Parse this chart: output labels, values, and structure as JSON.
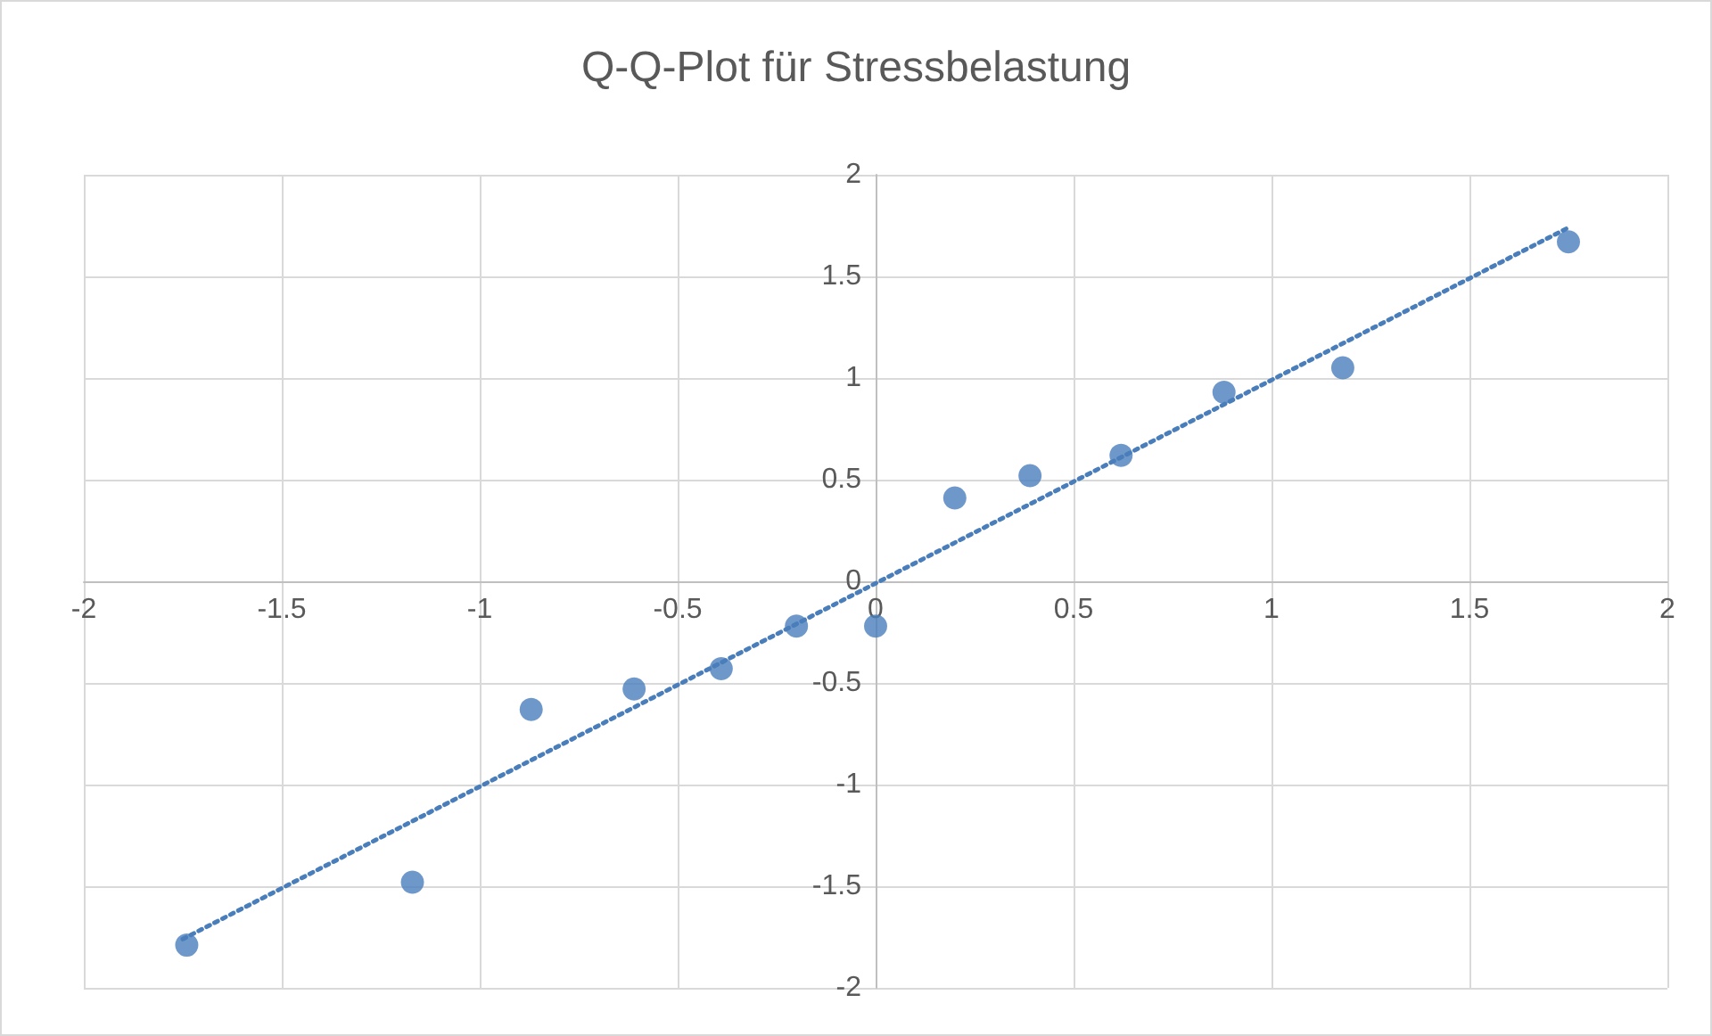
{
  "chart_data": {
    "type": "scatter",
    "title": "Q-Q-Plot für Stressbelastung",
    "x": [
      -1.74,
      -1.17,
      -0.87,
      -0.61,
      -0.39,
      -0.2,
      0,
      0.2,
      0.39,
      0.62,
      0.88,
      1.18,
      1.75
    ],
    "series": [
      {
        "color": "#4a7ebb",
        "marker": "circle",
        "values": [
          -1.79,
          -1.48,
          -0.63,
          -0.53,
          -0.43,
          -0.22,
          -0.22,
          0.41,
          0.52,
          0.62,
          0.93,
          1.05,
          1.67
        ]
      },
      {
        "type": "line",
        "color": "#4a7ebb",
        "line_style": "dotted",
        "x": [
          -1.75,
          1.75
        ],
        "values": [
          -1.76,
          1.74
        ]
      }
    ],
    "xlim": [
      -2,
      2
    ],
    "xticks": [
      -2,
      -1.5,
      -1,
      -0.5,
      0,
      0.5,
      1,
      1.5,
      2
    ],
    "ylim": [
      -2,
      2
    ],
    "yticks": [
      -2,
      -1.5,
      -1,
      -0.5,
      0,
      0.5,
      1,
      1.5,
      2
    ],
    "grid": true
  }
}
